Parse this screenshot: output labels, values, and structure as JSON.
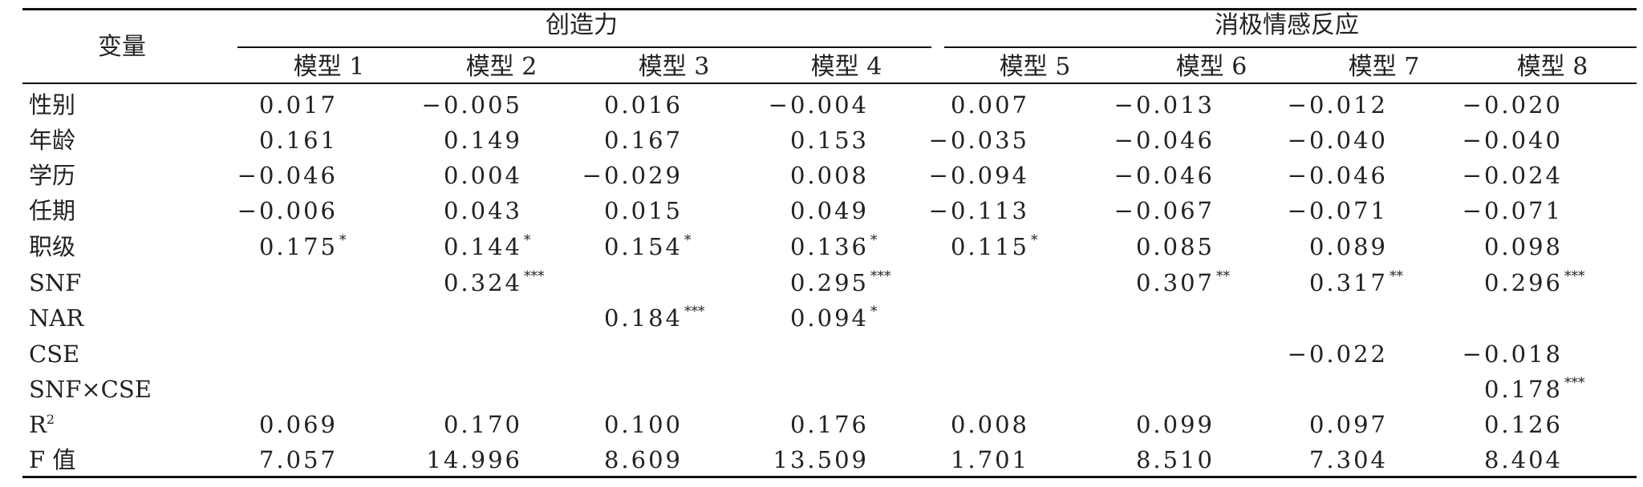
{
  "table": {
    "var_header": "变量",
    "groups": [
      "创造力",
      "消极情感反应"
    ],
    "models": [
      "模型 1",
      "模型 2",
      "模型 3",
      "模型 4",
      "模型 5",
      "模型 6",
      "模型 7",
      "模型 8"
    ],
    "rows": [
      {
        "label": "性别",
        "cells": [
          [
            "0.017",
            ""
          ],
          [
            "−0.005",
            ""
          ],
          [
            "0.016",
            ""
          ],
          [
            "−0.004",
            ""
          ],
          [
            "0.007",
            ""
          ],
          [
            "−0.013",
            ""
          ],
          [
            "−0.012",
            ""
          ],
          [
            "−0.020",
            ""
          ]
        ]
      },
      {
        "label": "年龄",
        "cells": [
          [
            "0.161",
            ""
          ],
          [
            "0.149",
            ""
          ],
          [
            "0.167",
            ""
          ],
          [
            "0.153",
            ""
          ],
          [
            "−0.035",
            ""
          ],
          [
            "−0.046",
            ""
          ],
          [
            "−0.040",
            ""
          ],
          [
            "−0.040",
            ""
          ]
        ]
      },
      {
        "label": "学历",
        "cells": [
          [
            "−0.046",
            ""
          ],
          [
            "0.004",
            ""
          ],
          [
            "−0.029",
            ""
          ],
          [
            "0.008",
            ""
          ],
          [
            "−0.094",
            ""
          ],
          [
            "−0.046",
            ""
          ],
          [
            "−0.046",
            ""
          ],
          [
            "−0.024",
            ""
          ]
        ]
      },
      {
        "label": "任期",
        "cells": [
          [
            "−0.006",
            ""
          ],
          [
            "0.043",
            ""
          ],
          [
            "0.015",
            ""
          ],
          [
            "0.049",
            ""
          ],
          [
            "−0.113",
            ""
          ],
          [
            "−0.067",
            ""
          ],
          [
            "−0.071",
            ""
          ],
          [
            "−0.071",
            ""
          ]
        ]
      },
      {
        "label": "职级",
        "cells": [
          [
            "0.175",
            "*"
          ],
          [
            "0.144",
            "*"
          ],
          [
            "0.154",
            "*"
          ],
          [
            "0.136",
            "*"
          ],
          [
            "0.115",
            "*"
          ],
          [
            "0.085",
            ""
          ],
          [
            "0.089",
            ""
          ],
          [
            "0.098",
            ""
          ]
        ]
      },
      {
        "label": "SNF",
        "cells": [
          [
            "",
            ""
          ],
          [
            "0.324",
            "***"
          ],
          [
            "",
            ""
          ],
          [
            "0.295",
            "***"
          ],
          [
            "",
            ""
          ],
          [
            "0.307",
            "**"
          ],
          [
            "0.317",
            "**"
          ],
          [
            "0.296",
            "***"
          ]
        ]
      },
      {
        "label": "NAR",
        "cells": [
          [
            "",
            ""
          ],
          [
            "",
            ""
          ],
          [
            "0.184",
            "***"
          ],
          [
            "0.094",
            "*"
          ],
          [
            "",
            ""
          ],
          [
            "",
            ""
          ],
          [
            "",
            ""
          ],
          [
            "",
            ""
          ]
        ]
      },
      {
        "label": "CSE",
        "cells": [
          [
            "",
            ""
          ],
          [
            "",
            ""
          ],
          [
            "",
            ""
          ],
          [
            "",
            ""
          ],
          [
            "",
            ""
          ],
          [
            "",
            ""
          ],
          [
            "−0.022",
            ""
          ],
          [
            "−0.018",
            ""
          ]
        ]
      },
      {
        "label": "SNF×CSE",
        "cells": [
          [
            "",
            ""
          ],
          [
            "",
            ""
          ],
          [
            "",
            ""
          ],
          [
            "",
            ""
          ],
          [
            "",
            ""
          ],
          [
            "",
            ""
          ],
          [
            "",
            ""
          ],
          [
            "0.178",
            "***"
          ]
        ]
      },
      {
        "label": "R",
        "label_sup": "2",
        "cells": [
          [
            "0.069",
            ""
          ],
          [
            "0.170",
            ""
          ],
          [
            "0.100",
            ""
          ],
          [
            "0.176",
            ""
          ],
          [
            "0.008",
            ""
          ],
          [
            "0.099",
            ""
          ],
          [
            "0.097",
            ""
          ],
          [
            "0.126",
            ""
          ]
        ]
      },
      {
        "label": "F 值",
        "cells": [
          [
            "7.057",
            ""
          ],
          [
            "14.996",
            ""
          ],
          [
            "8.609",
            ""
          ],
          [
            "13.509",
            ""
          ],
          [
            "1.701",
            ""
          ],
          [
            "8.510",
            ""
          ],
          [
            "7.304",
            ""
          ],
          [
            "8.404",
            ""
          ]
        ]
      }
    ]
  }
}
